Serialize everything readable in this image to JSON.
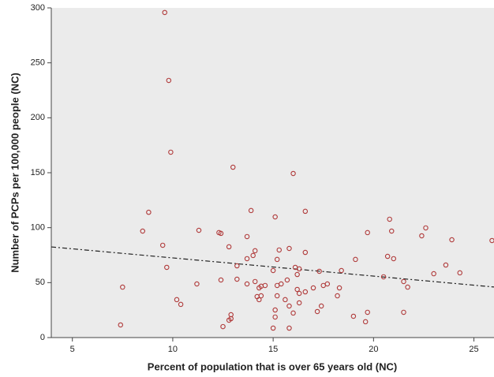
{
  "chart_data": {
    "type": "scatter",
    "x_label": "Percent of population that is over 65 years old (NC)",
    "y_label": "Number of PCPs per 100,000 people (NC)",
    "xlim": [
      3.95,
      26.0
    ],
    "ylim": [
      0,
      300
    ],
    "xticks": [
      5,
      10,
      15,
      20,
      25
    ],
    "yticks": [
      0,
      50,
      100,
      150,
      200,
      250,
      300
    ],
    "color": "#b03a3a",
    "background": "#ebebeb",
    "x": [
      9.6,
      9.8,
      9.9,
      13.0,
      16.0,
      8.8,
      13.9,
      16.6,
      8.5,
      11.3,
      12.3,
      12.4,
      15.1,
      13.7,
      9.5,
      9.7,
      12.8,
      14.1,
      15.3,
      15.8,
      14.0,
      16.6,
      20.8,
      19.7,
      20.9,
      22.6,
      22.4,
      23.9,
      25.9,
      13.7,
      15.2,
      13.2,
      16.1,
      19.1,
      20.7,
      21.0,
      23.6,
      16.3,
      15.0,
      16.2,
      17.3,
      18.4,
      23.0,
      24.3,
      20.5,
      11.2,
      12.4,
      13.2,
      13.7,
      14.1,
      14.6,
      15.2,
      15.4,
      15.7,
      14.3,
      14.4,
      17.0,
      17.5,
      17.7,
      18.3,
      21.5,
      21.7,
      7.5,
      16.2,
      16.6,
      16.3,
      14.2,
      14.3,
      14.4,
      15.2,
      15.6,
      18.2,
      10.2,
      10.4,
      16.3,
      15.8,
      17.4,
      15.1,
      17.2,
      19.7,
      21.5,
      19.0,
      12.9,
      12.9,
      15.1,
      16.0,
      12.8,
      19.6,
      12.5,
      15.0,
      15.8,
      7.4
    ],
    "values": [
      295.8,
      234.0,
      168.7,
      155.0,
      149.3,
      114.0,
      115.6,
      114.9,
      96.9,
      97.6,
      95.5,
      94.8,
      109.8,
      91.9,
      84.0,
      63.9,
      82.6,
      79.0,
      79.7,
      81.1,
      74.7,
      77.5,
      107.7,
      95.5,
      96.9,
      99.8,
      92.6,
      89.0,
      88.3,
      71.8,
      71.1,
      65.3,
      63.9,
      71.1,
      73.9,
      71.8,
      66.0,
      62.5,
      61.0,
      57.4,
      60.3,
      61.0,
      58.1,
      58.9,
      55.3,
      48.8,
      52.4,
      53.1,
      48.8,
      51.0,
      47.4,
      47.4,
      48.8,
      52.4,
      45.2,
      46.7,
      45.2,
      47.4,
      48.8,
      45.2,
      51.0,
      45.9,
      45.9,
      43.8,
      41.6,
      40.2,
      37.3,
      34.5,
      38.0,
      38.0,
      34.5,
      38.0,
      34.5,
      30.2,
      31.6,
      28.7,
      28.7,
      25.1,
      23.7,
      23.0,
      23.0,
      19.4,
      20.8,
      17.2,
      18.7,
      22.3,
      15.8,
      14.4,
      10.0,
      8.6,
      8.6,
      11.5
    ],
    "trend_line": {
      "x": [
        3.95,
        26.0
      ],
      "y": [
        82.5,
        46.0
      ]
    }
  }
}
